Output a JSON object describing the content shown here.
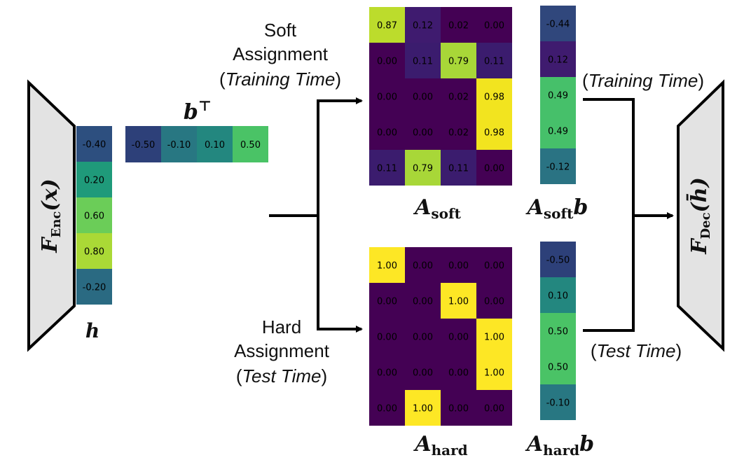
{
  "colors": {
    "v000": "#440154",
    "v011": "#3b1c6e",
    "v012": "#3f1b6f",
    "vneg044": "#30477c",
    "vneg050": "#2d4079",
    "vneg040": "#2d4f7f",
    "vneg020": "#2a6a82",
    "vneg012": "#2a7383",
    "vneg010": "#287782",
    "v010": "#23877f",
    "v012b": "#228b7e",
    "v020": "#1f9a7a",
    "v049": "#46c06a",
    "v050": "#4ac366",
    "v060": "#6bcd58",
    "v079": "#a8d738",
    "v080": "#aad936",
    "v087": "#bcdc2c",
    "v098": "#f2e41f",
    "v100": "#fde725",
    "stroke": "#000000",
    "encoder_fill": "#e3e3e3"
  },
  "encoder": {
    "label": "F",
    "subscript": "Enc",
    "arg": "(x)"
  },
  "decoder": {
    "label": "F",
    "subscript": "Dec",
    "arg": "(h̄)"
  },
  "h": {
    "label": "h",
    "values": [
      "-0.40",
      "0.20",
      "0.60",
      "0.80",
      "-0.20"
    ]
  },
  "b": {
    "label": "b",
    "superscript": "⊤",
    "values": [
      "-0.50",
      "-0.10",
      "0.10",
      "0.50"
    ]
  },
  "soft": {
    "caption_line1": "Soft",
    "caption_line2": "Assignment",
    "caption_line3": "Training Time",
    "matrix_label": "A",
    "matrix_sub": "soft",
    "matrix": [
      [
        "0.87",
        "0.12",
        "0.02",
        "0.00"
      ],
      [
        "0.00",
        "0.11",
        "0.79",
        "0.11"
      ],
      [
        "0.00",
        "0.00",
        "0.02",
        "0.98"
      ],
      [
        "0.00",
        "0.00",
        "0.02",
        "0.98"
      ],
      [
        "0.11",
        "0.79",
        "0.11",
        "0.00"
      ]
    ],
    "product_label": "A",
    "product_sub": "soft",
    "product_b": "b",
    "product": [
      "-0.44",
      "0.12",
      "0.49",
      "0.49",
      "-0.12"
    ],
    "right_caption": "Training Time"
  },
  "hard": {
    "caption_line1": "Hard",
    "caption_line2": "Assignment",
    "caption_line3": "Test Time",
    "matrix_label": "A",
    "matrix_sub": "hard",
    "matrix": [
      [
        "1.00",
        "0.00",
        "0.00",
        "0.00"
      ],
      [
        "0.00",
        "0.00",
        "1.00",
        "0.00"
      ],
      [
        "0.00",
        "0.00",
        "0.00",
        "1.00"
      ],
      [
        "0.00",
        "0.00",
        "0.00",
        "1.00"
      ],
      [
        "0.00",
        "1.00",
        "0.00",
        "0.00"
      ]
    ],
    "product_label": "A",
    "product_sub": "hard",
    "product_b": "b",
    "product": [
      "-0.50",
      "0.10",
      "0.50",
      "0.50",
      "-0.10"
    ],
    "right_caption": "Test Time"
  }
}
